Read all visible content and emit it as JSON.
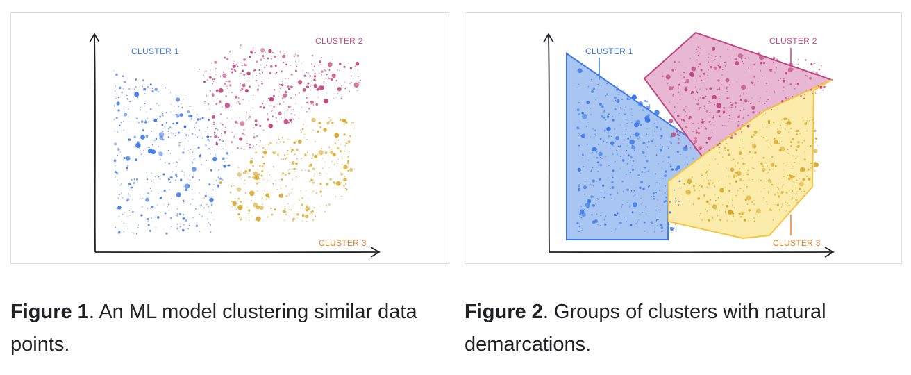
{
  "colors": {
    "cluster1": "#3b78e7",
    "cluster2": "#c2447f",
    "cluster3": "#d9a82b",
    "cluster1_fill": "#a9c5f2",
    "cluster2_fill": "#e7b7d4",
    "cluster3_fill": "#fcecab",
    "axis": "#202124"
  },
  "figure1": {
    "labels": {
      "cluster1": "CLUSTER 1",
      "cluster2": "CLUSTER 2",
      "cluster3": "CLUSTER 3"
    },
    "caption_bold": "Figure 1",
    "caption_text": ". An ML model clustering similar data points."
  },
  "figure2": {
    "labels": {
      "cluster1": "CLUSTER 1",
      "cluster2": "CLUSTER 2",
      "cluster3": "CLUSTER 3"
    },
    "caption_bold": "Figure 2",
    "caption_text": ". Groups of clusters with natural demarcations."
  }
}
